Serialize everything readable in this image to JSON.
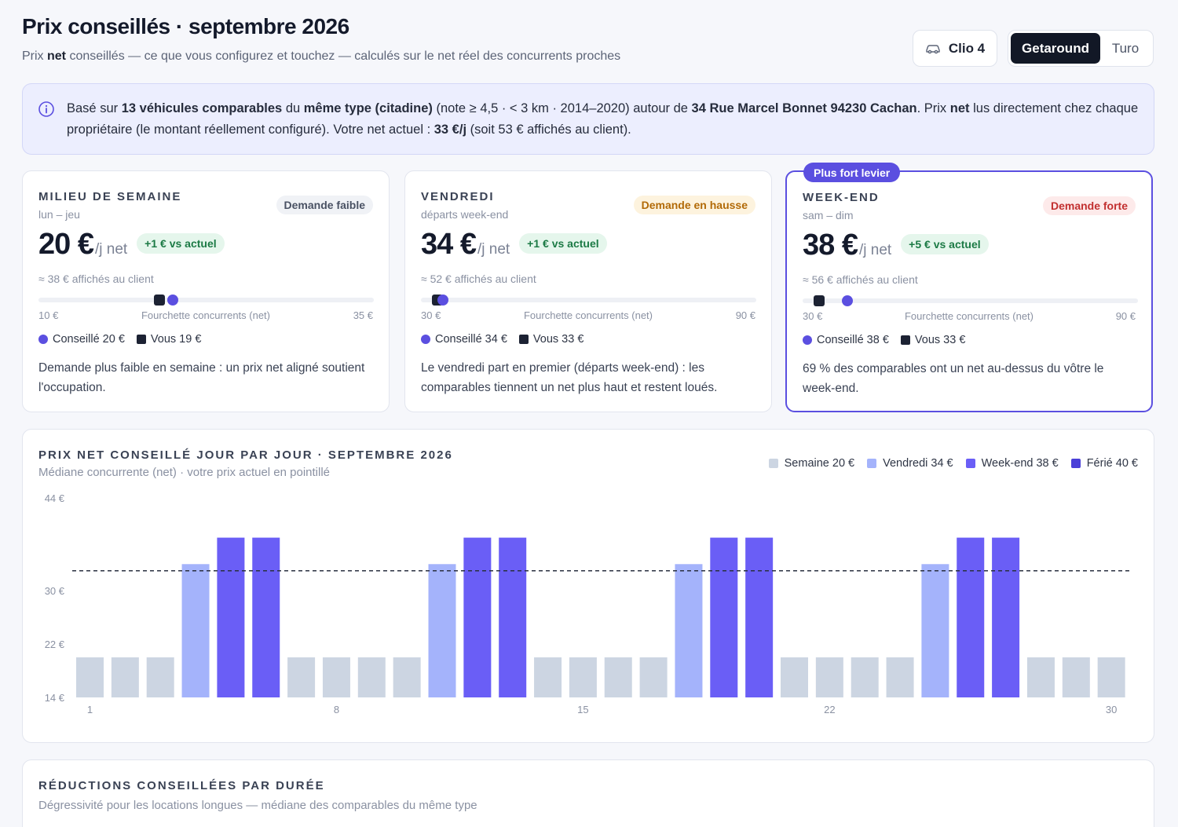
{
  "header": {
    "title": "Prix conseillés · septembre 2026",
    "subtitle_before": "Prix ",
    "subtitle_bold": "net",
    "subtitle_after": " conseillés — ce que vous configurez et touchez — calculés sur le net réel des concurrents proches",
    "car_label": "Clio 4",
    "platforms": [
      "Getaround",
      "Turo"
    ],
    "active_platform": "Getaround"
  },
  "info": {
    "p1": "Basé sur ",
    "b1": "13 véhicules comparables",
    "p2": " du ",
    "b2": "même type (citadine)",
    "p3": " (note ≥ 4,5 · < 3 km · 2014–2020) autour de ",
    "b3": "34 Rue Marcel Bonnet 94230 Cachan",
    "p4": ". Prix ",
    "b4": "net",
    "p5": " lus directement chez chaque propriétaire (le montant réellement configuré). Votre net actuel : ",
    "b5": "33 €/j",
    "p6": " (soit 53 € affichés au client)."
  },
  "cards": [
    {
      "label": "MILIEU DE SEMAINE",
      "sublabel": "lun – jeu",
      "badge": "Demande faible",
      "price": "20 €",
      "unit": "/j net",
      "delta": "+1 € vs actuel",
      "client_price": "≈ 38 € affichés au client",
      "range_min": "10 €",
      "range_max": "35 €",
      "range_label": "Fourchette concurrents (net)",
      "range_min_value": 10,
      "range_max_value": 35,
      "recommended_value": 20,
      "current_value": 19,
      "legend_rec": "Conseillé 20 €",
      "legend_you": "Vous 19 €",
      "desc": "Demande plus faible en semaine : un prix net aligné soutient l'occupation."
    },
    {
      "label": "VENDREDI",
      "sublabel": "départs week-end",
      "badge": "Demande en hausse",
      "price": "34 €",
      "unit": "/j net",
      "delta": "+1 € vs actuel",
      "client_price": "≈ 52 € affichés au client",
      "range_min": "30 €",
      "range_max": "90 €",
      "range_label": "Fourchette concurrents (net)",
      "range_min_value": 30,
      "range_max_value": 90,
      "recommended_value": 34,
      "current_value": 33,
      "legend_rec": "Conseillé 34 €",
      "legend_you": "Vous 33 €",
      "desc": "Le vendredi part en premier (départs week-end) : les comparables tiennent un net plus haut et restent loués."
    },
    {
      "tag": "Plus fort levier",
      "label": "WEEK-END",
      "sublabel": "sam – dim",
      "badge": "Demande forte",
      "price": "38 €",
      "unit": "/j net",
      "delta": "+5 € vs actuel",
      "client_price": "≈ 56 € affichés au client",
      "range_min": "30 €",
      "range_max": "90 €",
      "range_label": "Fourchette concurrents (net)",
      "range_min_value": 30,
      "range_max_value": 90,
      "recommended_value": 38,
      "current_value": 33,
      "legend_rec": "Conseillé 38 €",
      "legend_you": "Vous 33 €",
      "desc": "69 % des comparables ont un net au-dessus du vôtre le week-end."
    }
  ],
  "chart_section": {
    "title": "PRIX NET CONSEILLÉ JOUR PAR JOUR · SEPTEMBRE 2026",
    "subtitle": "Médiane concurrente (net) · votre prix actuel en pointillé",
    "legend": [
      {
        "label": "Semaine 20 €",
        "color": "#ccd5e2"
      },
      {
        "label": "Vendredi 34 €",
        "color": "#a4b3fb"
      },
      {
        "label": "Week-end 38 €",
        "color": "#6a5ef6"
      },
      {
        "label": "Férié 40 €",
        "color": "#4a3fd8"
      }
    ]
  },
  "chart_data": {
    "type": "bar",
    "x": [
      1,
      2,
      3,
      4,
      5,
      6,
      7,
      8,
      9,
      10,
      11,
      12,
      13,
      14,
      15,
      16,
      17,
      18,
      19,
      20,
      21,
      22,
      23,
      24,
      25,
      26,
      27,
      28,
      29,
      30
    ],
    "values": [
      20,
      20,
      20,
      34,
      38,
      38,
      20,
      20,
      20,
      20,
      34,
      38,
      38,
      20,
      20,
      20,
      20,
      34,
      38,
      38,
      20,
      20,
      20,
      20,
      34,
      38,
      38,
      20,
      20,
      20
    ],
    "day_type": [
      "Semaine",
      "Semaine",
      "Semaine",
      "Vendredi",
      "Week-end",
      "Week-end",
      "Semaine",
      "Semaine",
      "Semaine",
      "Semaine",
      "Vendredi",
      "Week-end",
      "Week-end",
      "Semaine",
      "Semaine",
      "Semaine",
      "Semaine",
      "Vendredi",
      "Week-end",
      "Week-end",
      "Semaine",
      "Semaine",
      "Semaine",
      "Semaine",
      "Vendredi",
      "Week-end",
      "Week-end",
      "Semaine",
      "Semaine",
      "Semaine"
    ],
    "x_tick_labels": [
      "1",
      "8",
      "15",
      "22",
      "30"
    ],
    "x_tick_values": [
      1,
      8,
      15,
      22,
      30
    ],
    "y_tick_labels": [
      "44 €",
      "30 €",
      "22 €",
      "14 €"
    ],
    "y_tick_values": [
      44,
      30,
      22,
      14
    ],
    "ylim": [
      14,
      44
    ],
    "current_price": 33,
    "colors": {
      "Semaine": "#ccd5e2",
      "Vendredi": "#a4b3fb",
      "Week-end": "#6a5ef6"
    }
  },
  "reductions": {
    "title": "RÉDUCTIONS CONSEILLÉES PAR DURÉE",
    "subtitle": "Dégressivité pour les locations longues — médiane des comparables du même type"
  }
}
